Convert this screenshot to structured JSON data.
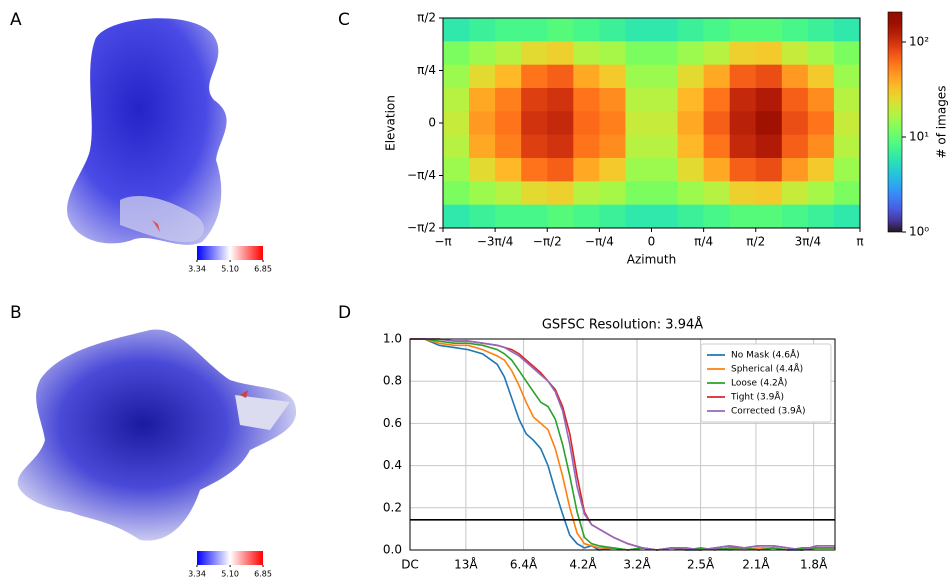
{
  "chart_data": [
    {
      "type": "map",
      "panel": "A",
      "clim": [
        3.34,
        6.85
      ],
      "colors": [
        "#0000ff",
        "#ffffff",
        "#ff0000"
      ],
      "colorbar_ticks": [
        3.34,
        {
          "value": 5.1,
          "label": "5.10"
        },
        6.85
      ]
    },
    {
      "type": "map",
      "panel": "B",
      "clim": [
        3.34,
        6.85
      ],
      "colors": [
        "#0000ff",
        "#ffffff",
        "#ff0000"
      ],
      "colorbar_ticks": [
        3.34,
        {
          "value": 5.1,
          "label": "5.10"
        },
        6.85
      ]
    },
    {
      "type": "hexbin",
      "panel": "C",
      "xlabel": "Azimuth",
      "ylabel": "Elevation",
      "colorbar_label": "# of images",
      "colormap": "turbo",
      "log_color": true,
      "clim": [
        1,
        207
      ],
      "xlim": [
        -3.1416,
        3.1416
      ],
      "ylim": [
        -1.5708,
        1.5708
      ],
      "xticks": [
        {
          "value": -3.1416,
          "label": "−π"
        },
        {
          "value": -2.3562,
          "label": "−3π/4"
        },
        {
          "value": -1.5708,
          "label": "−π/2"
        },
        {
          "value": -0.7854,
          "label": "−π/4"
        },
        0,
        {
          "value": 0.7854,
          "label": "π/4"
        },
        {
          "value": 1.5708,
          "label": "π/2"
        },
        {
          "value": 2.3562,
          "label": "3π/4"
        },
        {
          "value": 3.1416,
          "label": "π"
        }
      ],
      "yticks": [
        {
          "value": -1.5708,
          "label": "−π/2"
        },
        {
          "value": -0.7854,
          "label": "−π/4"
        },
        0,
        {
          "value": 0.7854,
          "label": "π/4"
        },
        {
          "value": 1.5708,
          "label": "π/2"
        }
      ],
      "colorbar_ticks": [
        {
          "value": 1,
          "label": "10⁰"
        },
        {
          "value": 10,
          "label": "10¹"
        },
        {
          "value": 100,
          "label": "10²"
        }
      ],
      "z": [
        [
          6,
          7,
          8,
          8,
          9,
          8,
          7,
          6,
          6,
          7,
          8,
          9,
          9,
          8,
          7,
          6
        ],
        [
          12,
          15,
          18,
          25,
          28,
          18,
          16,
          12,
          12,
          15,
          18,
          28,
          30,
          20,
          16,
          12
        ],
        [
          15,
          25,
          35,
          60,
          70,
          40,
          30,
          15,
          15,
          25,
          40,
          70,
          80,
          45,
          30,
          15
        ],
        [
          18,
          40,
          55,
          90,
          100,
          60,
          50,
          18,
          18,
          35,
          60,
          110,
          130,
          70,
          50,
          18
        ],
        [
          20,
          45,
          60,
          100,
          110,
          65,
          55,
          20,
          20,
          40,
          70,
          120,
          150,
          80,
          60,
          20
        ],
        [
          18,
          40,
          55,
          90,
          100,
          60,
          50,
          18,
          18,
          35,
          60,
          110,
          130,
          70,
          50,
          18
        ],
        [
          15,
          25,
          35,
          60,
          70,
          40,
          30,
          15,
          15,
          25,
          40,
          70,
          80,
          45,
          30,
          15
        ],
        [
          12,
          15,
          18,
          25,
          28,
          18,
          16,
          12,
          12,
          15,
          18,
          28,
          30,
          20,
          16,
          12
        ],
        [
          6,
          7,
          8,
          8,
          9,
          8,
          7,
          6,
          6,
          7,
          8,
          9,
          9,
          8,
          7,
          6
        ]
      ]
    },
    {
      "type": "line",
      "panel": "D",
      "title": "GSFSC Resolution: 3.94Å",
      "grid": true,
      "legend": "upper right",
      "xlim": [
        0,
        0.585
      ],
      "ylim": [
        0,
        1
      ],
      "xticks": [
        {
          "value": 0,
          "label": "DC"
        },
        {
          "value": 0.0769,
          "label": "13Å"
        },
        {
          "value": 0.1563,
          "label": "6.4Å"
        },
        {
          "value": 0.2381,
          "label": "4.2Å"
        },
        {
          "value": 0.3125,
          "label": "3.2Å"
        },
        {
          "value": 0.4,
          "label": "2.5Å"
        },
        {
          "value": 0.4762,
          "label": "2.1Å"
        },
        {
          "value": 0.5556,
          "label": "1.8Å"
        }
      ],
      "yticks": [
        {
          "value": 0,
          "label": "0.0"
        },
        0.2,
        0.4,
        0.6,
        0.8,
        {
          "value": 1,
          "label": "1.0"
        }
      ],
      "threshold": 0.143,
      "x": [
        0,
        0.02,
        0.04,
        0.06,
        0.08,
        0.1,
        0.12,
        0.13,
        0.14,
        0.15,
        0.16,
        0.17,
        0.18,
        0.19,
        0.2,
        0.21,
        0.22,
        0.23,
        0.24,
        0.25,
        0.26,
        0.28,
        0.3,
        0.32,
        0.34,
        0.36,
        0.38,
        0.4,
        0.42,
        0.44,
        0.46,
        0.48,
        0.5,
        0.52,
        0.54,
        0.56,
        0.585
      ],
      "series": [
        {
          "name": "No Mask (4.6Å)",
          "color": "#1f77b4",
          "values": [
            1,
            1,
            0.97,
            0.96,
            0.95,
            0.93,
            0.88,
            0.82,
            0.72,
            0.62,
            0.55,
            0.52,
            0.48,
            0.4,
            0.28,
            0.17,
            0.07,
            0.03,
            0.01,
            0.02,
            0,
            0.01,
            0,
            0.01,
            0,
            0.01,
            0,
            0,
            0.01,
            0,
            0.01,
            0,
            0.01,
            0,
            0,
            0.01,
            0.01
          ]
        },
        {
          "name": "Spherical (4.4Å)",
          "color": "#ff7f0e",
          "values": [
            1,
            1,
            0.98,
            0.97,
            0.97,
            0.95,
            0.92,
            0.9,
            0.85,
            0.78,
            0.7,
            0.63,
            0.6,
            0.57,
            0.48,
            0.35,
            0.2,
            0.08,
            0.03,
            0.02,
            0.01,
            0.01,
            0,
            0.01,
            0,
            0.01,
            0,
            0.01,
            0,
            0.01,
            0,
            0.01,
            0.01,
            0,
            0.01,
            0.01,
            0.01
          ]
        },
        {
          "name": "Loose (4.2Å)",
          "color": "#2ca02c",
          "values": [
            1,
            1,
            0.99,
            0.98,
            0.98,
            0.97,
            0.95,
            0.93,
            0.9,
            0.85,
            0.8,
            0.75,
            0.7,
            0.68,
            0.62,
            0.5,
            0.35,
            0.18,
            0.06,
            0.03,
            0.02,
            0.01,
            0,
            0.01,
            0,
            0.01,
            0,
            0.01,
            0,
            0.01,
            0.01,
            0,
            0.01,
            0,
            0.01,
            0.01,
            0.01
          ]
        },
        {
          "name": "Tight (3.9Å)",
          "color": "#d62728",
          "values": [
            1,
            1,
            1,
            0.99,
            0.99,
            0.98,
            0.97,
            0.96,
            0.95,
            0.93,
            0.9,
            0.87,
            0.84,
            0.8,
            0.76,
            0.68,
            0.55,
            0.35,
            0.18,
            0.12,
            0.1,
            0.06,
            0.03,
            0.01,
            0,
            0.01,
            0.01,
            0,
            0.01,
            0.02,
            0.01,
            0.02,
            0.02,
            0.01,
            0,
            0.02,
            0.02
          ]
        },
        {
          "name": "Corrected (3.9Å)",
          "color": "#9467bd",
          "values": [
            1,
            1,
            1,
            0.99,
            0.99,
            0.98,
            0.97,
            0.96,
            0.94,
            0.92,
            0.89,
            0.86,
            0.83,
            0.8,
            0.75,
            0.66,
            0.5,
            0.3,
            0.17,
            0.12,
            0.1,
            0.06,
            0.03,
            0.01,
            0,
            0.01,
            0.01,
            0,
            0.01,
            0.02,
            0.01,
            0.02,
            0.02,
            0.01,
            0,
            0.02,
            0.02
          ]
        }
      ]
    }
  ]
}
